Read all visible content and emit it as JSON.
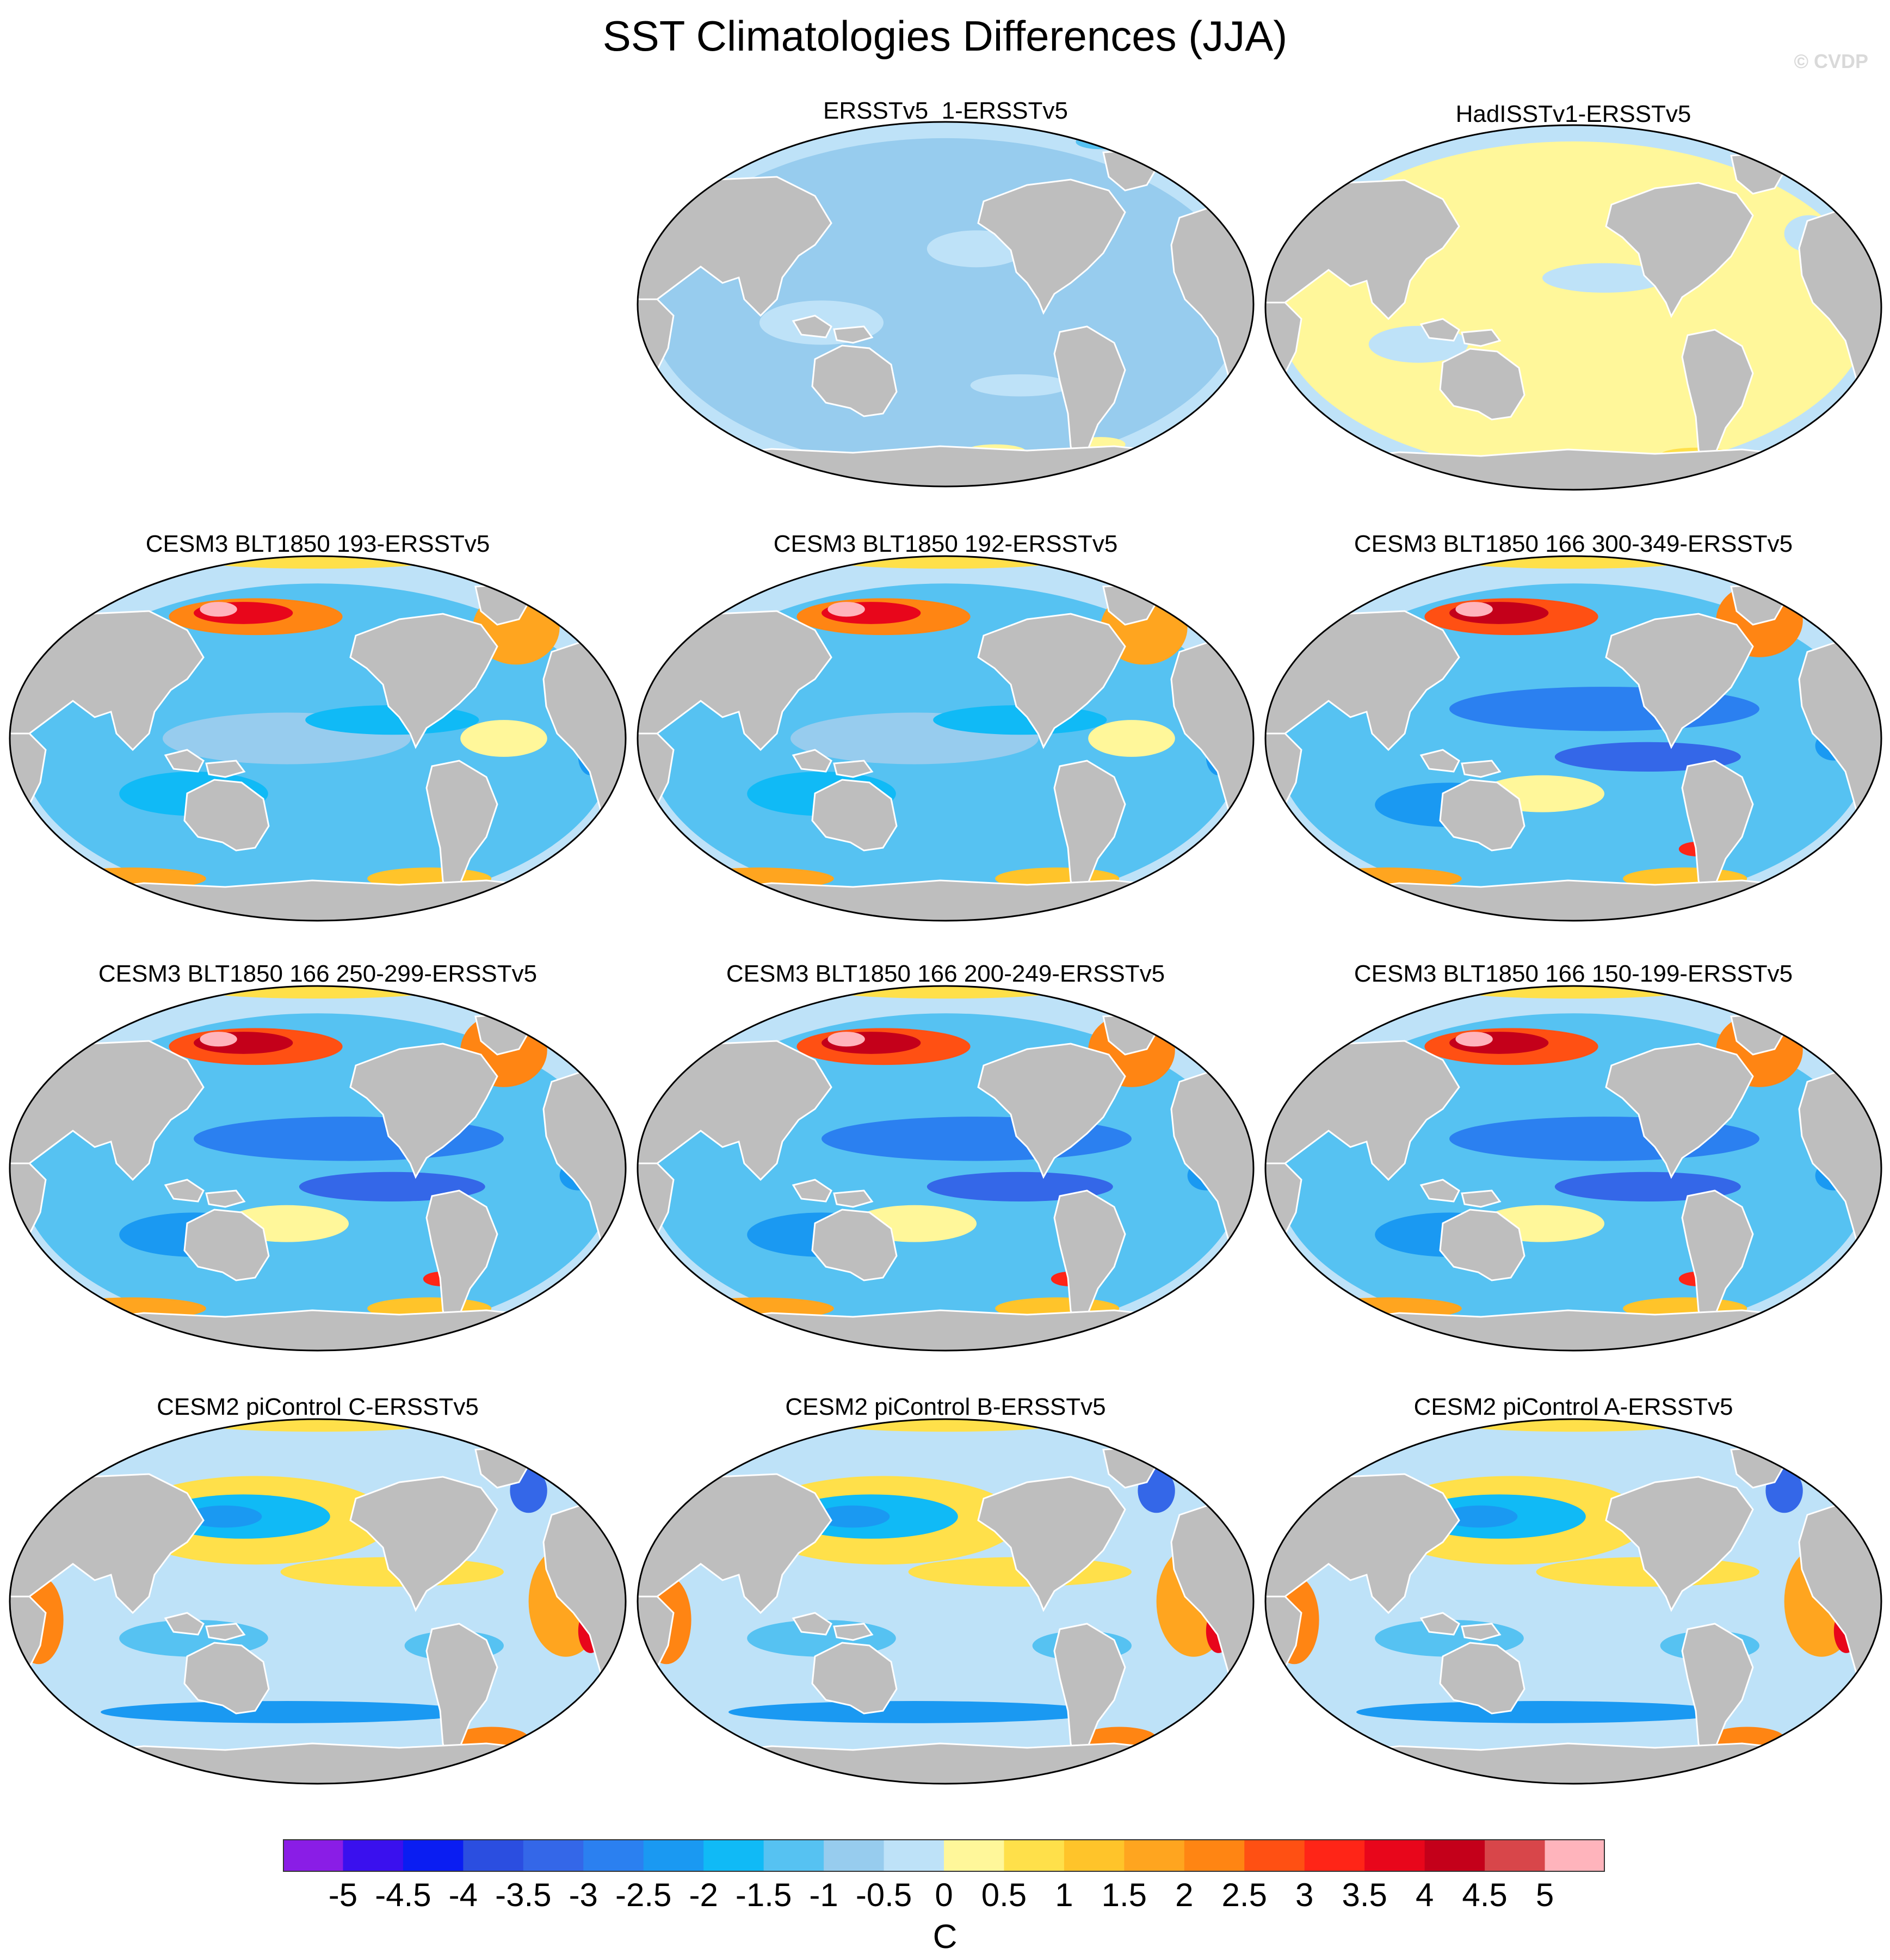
{
  "title": "SST Climatologies Differences (JJA)",
  "credit": "© CVDP",
  "panels": [
    {
      "title": "ERSSTv5_1-ERSSTv5",
      "pattern": "obs_cool"
    },
    {
      "title": "HadISSTv1-ERSSTv5",
      "pattern": "obs_warm"
    },
    {
      "title": "CESM3 BLT1850 193-ERSSTv5",
      "pattern": "cesm3"
    },
    {
      "title": "CESM3 BLT1850 192-ERSSTv5",
      "pattern": "cesm3"
    },
    {
      "title": "CESM3 BLT1850 166 300-349-ERSSTv5",
      "pattern": "cesm3_strong"
    },
    {
      "title": "CESM3 BLT1850 166 250-299-ERSSTv5",
      "pattern": "cesm3_strong"
    },
    {
      "title": "CESM3 BLT1850 166 200-249-ERSSTv5",
      "pattern": "cesm3_strong"
    },
    {
      "title": "CESM3 BLT1850 166 150-199-ERSSTv5",
      "pattern": "cesm3_strong"
    },
    {
      "title": "CESM2 piControl C-ERSSTv5",
      "pattern": "cesm2"
    },
    {
      "title": "CESM2 piControl B-ERSSTv5",
      "pattern": "cesm2"
    },
    {
      "title": "CESM2 piControl A-ERSSTv5",
      "pattern": "cesm2"
    }
  ],
  "colorbar": {
    "units": "C",
    "labels": [
      "-5",
      "-4.5",
      "-4",
      "-3.5",
      "-3",
      "-2.5",
      "-2",
      "-1.5",
      "-1",
      "-0.5",
      "0",
      "0.5",
      "1",
      "1.5",
      "2",
      "2.5",
      "3",
      "3.5",
      "4",
      "4.5",
      "5"
    ],
    "colors": [
      "#8a1de6",
      "#3a10ee",
      "#0a1df2",
      "#2b4ee0",
      "#3467e8",
      "#2b80f0",
      "#1a99f2",
      "#10baf6",
      "#56c2f2",
      "#97ccee",
      "#bee2f8",
      "#fff79a",
      "#ffe04a",
      "#ffc42a",
      "#ffa51f",
      "#ff8513",
      "#ff5013",
      "#ff2517",
      "#e8061b",
      "#c4001a",
      "#d8464a",
      "#ffb4bc"
    ]
  },
  "colors": {
    "land": "#bebebe",
    "ocean_base": "#bee2f8"
  }
}
